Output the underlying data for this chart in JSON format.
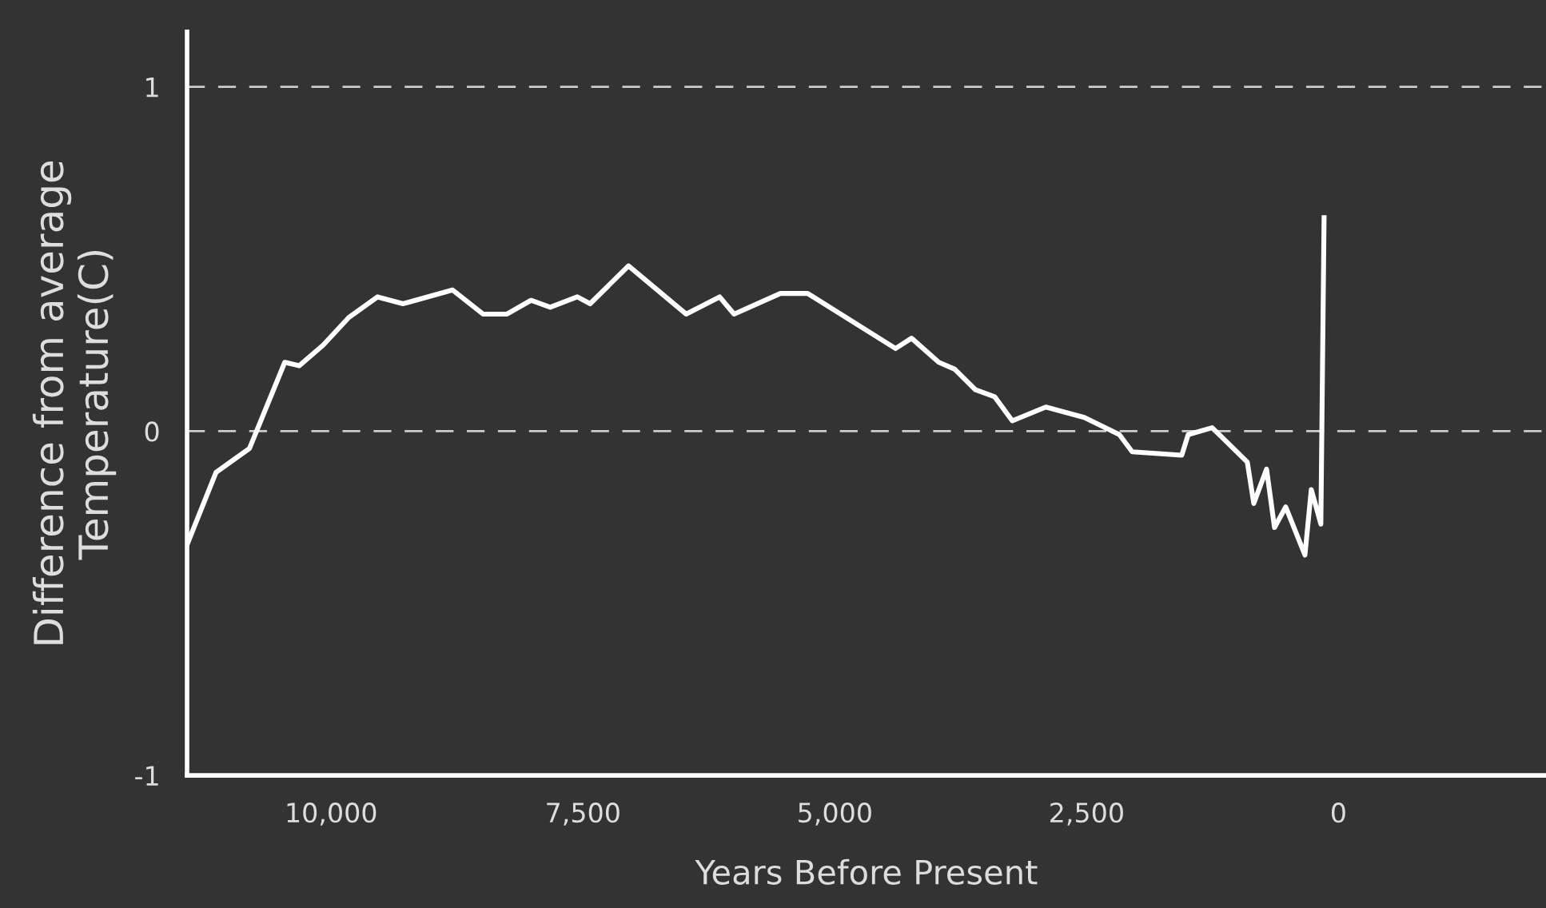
{
  "chart_data": {
    "type": "line",
    "xlabel": "Years Before Present",
    "ylabel": "Difference from average\nTemperature(C)",
    "xlim": [
      11430,
      -2060
    ],
    "ylim": [
      -1,
      1.16
    ],
    "xticks": [
      {
        "value": 10000,
        "label": "10,000"
      },
      {
        "value": 7500,
        "label": "7,500"
      },
      {
        "value": 5000,
        "label": "5,000"
      },
      {
        "value": 2500,
        "label": "2,500"
      },
      0
    ],
    "yticks": [
      -1,
      0,
      1
    ],
    "grid": "y",
    "line_style": "solid",
    "marker": "none",
    "series": [
      {
        "color": "#ffffff",
        "x": [
          11430,
          11143,
          10810,
          10460,
          10317,
          10079,
          9825,
          9540,
          9286,
          8794,
          8492,
          8254,
          8016,
          7825,
          7556,
          7429,
          7048,
          6476,
          6143,
          6000,
          5540,
          5270,
          4397,
          4238,
          3968,
          3810,
          3603,
          3413,
          3238,
          2905,
          2524,
          2175,
          2048,
          1556,
          1492,
          1254,
          905,
          841,
          714,
          635,
          524,
          333,
          270,
          222,
          175,
          143
        ],
        "values": [
          -0.33,
          -0.12,
          -0.05,
          0.2,
          0.19,
          0.25,
          0.33,
          0.39,
          0.37,
          0.41,
          0.34,
          0.34,
          0.38,
          0.36,
          0.39,
          0.37,
          0.48,
          0.34,
          0.39,
          0.34,
          0.4,
          0.4,
          0.24,
          0.27,
          0.2,
          0.18,
          0.12,
          0.1,
          0.03,
          0.07,
          0.04,
          -0.01,
          -0.06,
          -0.07,
          -0.01,
          0.01,
          -0.09,
          -0.21,
          -0.11,
          -0.28,
          -0.22,
          -0.36,
          -0.17,
          -0.22,
          -0.27,
          0.62
        ]
      }
    ]
  }
}
